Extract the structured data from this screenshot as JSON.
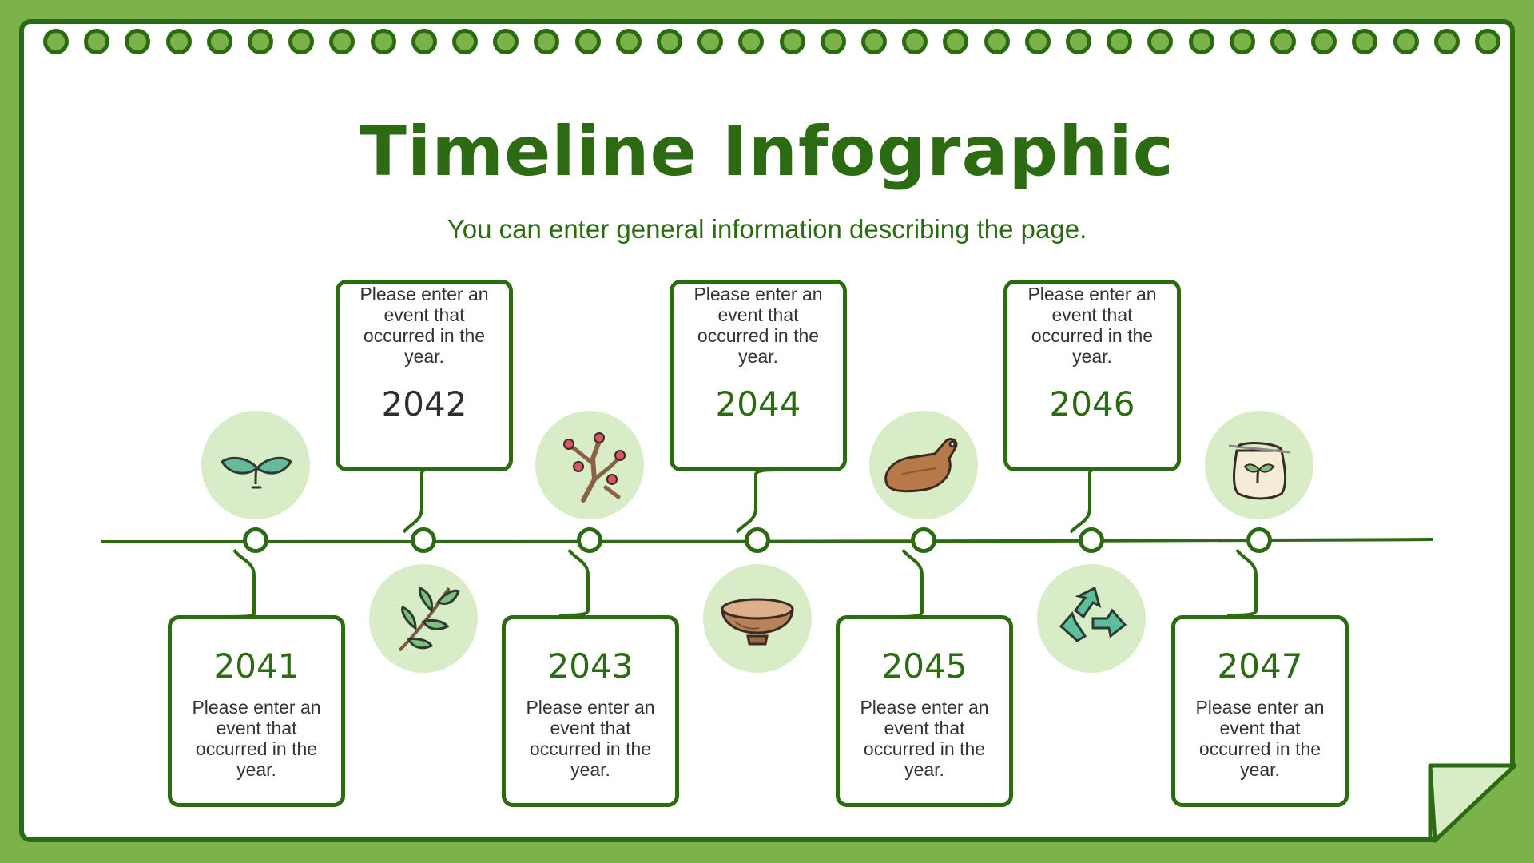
{
  "header": {
    "title": "Timeline Infographic",
    "subtitle": "You can enter general information describing the page."
  },
  "events": [
    {
      "year": "2041",
      "text": "Please enter an event that occurred in the year.",
      "icon": "sprout-icon",
      "placement": "below"
    },
    {
      "year": "2042",
      "text": "Please enter an event that occurred in the year.",
      "icon": "leaf-branch-icon",
      "placement": "above"
    },
    {
      "year": "2043",
      "text": "Please enter an event that occurred in the year.",
      "icon": "berry-branch-icon",
      "placement": "below"
    },
    {
      "year": "2044",
      "text": "Please enter an event that occurred in the year.",
      "icon": "wooden-bowl-icon",
      "placement": "above"
    },
    {
      "year": "2045",
      "text": "Please enter an event that occurred in the year.",
      "icon": "cutting-board-icon",
      "placement": "below"
    },
    {
      "year": "2046",
      "text": "Please enter an event that occurred in the year.",
      "icon": "recycle-icon",
      "placement": "above"
    },
    {
      "year": "2047",
      "text": "Please enter an event that occurred in the year.",
      "icon": "cloth-bag-icon",
      "placement": "below"
    }
  ],
  "colors": {
    "background": "#7bb34a",
    "dark_green": "#2c6b12",
    "icon_circle": "#d8ecc7",
    "page": "#ffffff"
  }
}
